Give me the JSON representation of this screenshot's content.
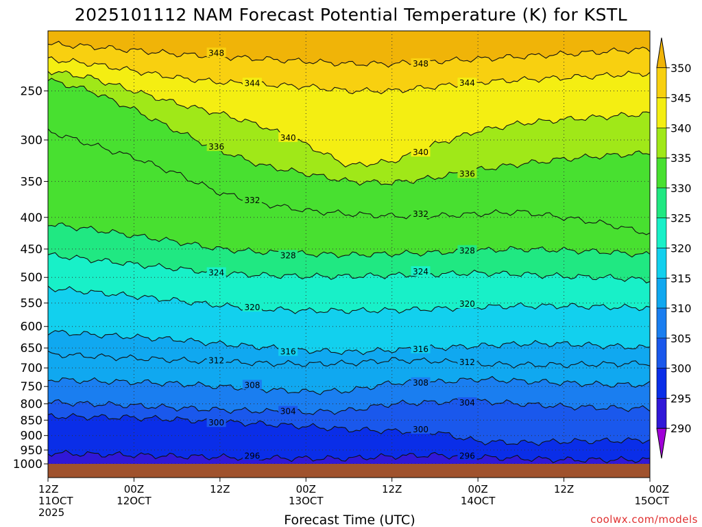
{
  "title": "2025101112 NAM Forecast Potential Temperature (K) for KSTL",
  "credit": "coolwx.com/models",
  "chart_data": {
    "type": "area",
    "title": "2025101112 NAM Forecast Potential Temperature (K) for KSTL",
    "xlabel": "Forecast Time (UTC)",
    "ylabel": "",
    "x_ticks": [
      {
        "hour": 0,
        "lines": [
          "12Z",
          "11OCT",
          "2025"
        ]
      },
      {
        "hour": 12,
        "lines": [
          "00Z",
          "12OCT"
        ]
      },
      {
        "hour": 24,
        "lines": [
          "12Z",
          ""
        ]
      },
      {
        "hour": 36,
        "lines": [
          "00Z",
          "13OCT"
        ]
      },
      {
        "hour": 48,
        "lines": [
          "12Z",
          ""
        ]
      },
      {
        "hour": 60,
        "lines": [
          "00Z",
          "14OCT"
        ]
      },
      {
        "hour": 72,
        "lines": [
          "12Z",
          ""
        ]
      },
      {
        "hour": 84,
        "lines": [
          "00Z",
          "15OCT"
        ]
      }
    ],
    "xlim": [
      0,
      84
    ],
    "y_ticks": [
      250,
      300,
      350,
      400,
      450,
      500,
      550,
      600,
      650,
      700,
      750,
      800,
      850,
      900,
      950,
      1000
    ],
    "ylim": [
      200,
      1000
    ],
    "y_scale": "log-pressure",
    "y_inverted": true,
    "grid": "dotted",
    "colorbar": {
      "levels": [
        290,
        295,
        300,
        305,
        310,
        315,
        320,
        325,
        330,
        335,
        340,
        345,
        350
      ],
      "colors": [
        "#a000d8",
        "#3018d8",
        "#0a2ee8",
        "#1a58ec",
        "#1a7ef0",
        "#10a8f0",
        "#12d0ee",
        "#18f0c8",
        "#20e882",
        "#48e030",
        "#a0e818",
        "#f4ee12",
        "#f8d010",
        "#f0b408"
      ]
    },
    "contour_labels": [
      "348",
      "344",
      "340",
      "336",
      "332",
      "328",
      "324",
      "320",
      "316",
      "312",
      "308",
      "304",
      "300",
      "296"
    ],
    "series": [
      {
        "name": "348",
        "x": [
          0,
          6,
          12,
          18,
          24,
          30,
          36,
          42,
          48,
          54,
          60,
          66,
          72,
          78,
          84
        ],
        "values": [
          210,
          212,
          215,
          218,
          220,
          222,
          224,
          226,
          226,
          224,
          222,
          220,
          218,
          216,
          214
        ]
      },
      {
        "name": "344",
        "x": [
          0,
          6,
          12,
          18,
          24,
          30,
          36,
          42,
          48,
          54,
          60,
          66,
          72,
          78,
          84
        ],
        "values": [
          222,
          226,
          232,
          238,
          242,
          244,
          246,
          250,
          250,
          246,
          242,
          240,
          238,
          236,
          234
        ]
      },
      {
        "name": "340",
        "x": [
          0,
          6,
          12,
          18,
          24,
          30,
          36,
          42,
          48,
          54,
          60,
          66,
          72,
          78,
          84
        ],
        "values": [
          232,
          238,
          250,
          262,
          272,
          285,
          305,
          330,
          325,
          305,
          290,
          282,
          278,
          275,
          272
        ]
      },
      {
        "name": "336",
        "x": [
          0,
          6,
          12,
          18,
          24,
          30,
          36,
          42,
          48,
          54,
          60,
          66,
          72,
          78,
          84
        ],
        "values": [
          240,
          250,
          268,
          290,
          312,
          330,
          340,
          350,
          352,
          345,
          335,
          328,
          322,
          318,
          315
        ]
      },
      {
        "name": "332",
        "x": [
          0,
          6,
          12,
          18,
          24,
          30,
          36,
          42,
          48,
          54,
          60,
          66,
          72,
          78,
          84
        ],
        "values": [
          290,
          305,
          320,
          340,
          365,
          380,
          390,
          395,
          398,
          398,
          395,
          392,
          400,
          410,
          425
        ]
      },
      {
        "name": "328",
        "x": [
          0,
          6,
          12,
          18,
          24,
          30,
          36,
          42,
          48,
          54,
          60,
          66,
          72,
          78,
          84
        ],
        "values": [
          410,
          418,
          428,
          438,
          450,
          455,
          458,
          460,
          458,
          456,
          452,
          450,
          452,
          455,
          460
        ]
      },
      {
        "name": "324",
        "x": [
          0,
          6,
          12,
          18,
          24,
          30,
          36,
          42,
          48,
          54,
          60,
          66,
          72,
          78,
          84
        ],
        "values": [
          460,
          468,
          476,
          484,
          492,
          496,
          498,
          498,
          496,
          494,
          492,
          494,
          498,
          500,
          505
        ]
      },
      {
        "name": "320",
        "x": [
          0,
          6,
          12,
          18,
          24,
          30,
          36,
          42,
          48,
          54,
          60,
          66,
          72,
          78,
          84
        ],
        "values": [
          520,
          528,
          536,
          545,
          555,
          562,
          566,
          566,
          565,
          562,
          558,
          556,
          556,
          558,
          560
        ]
      },
      {
        "name": "316",
        "x": [
          0,
          6,
          12,
          18,
          24,
          30,
          36,
          42,
          48,
          54,
          60,
          66,
          72,
          78,
          84
        ],
        "values": [
          612,
          618,
          624,
          630,
          640,
          648,
          656,
          660,
          655,
          650,
          645,
          640,
          640,
          645,
          650
        ]
      },
      {
        "name": "312",
        "x": [
          0,
          6,
          12,
          18,
          24,
          30,
          36,
          42,
          48,
          54,
          60,
          66,
          72,
          78,
          84
        ],
        "values": [
          665,
          670,
          675,
          680,
          684,
          688,
          690,
          688,
          680,
          682,
          690,
          692,
          692,
          690,
          688
        ]
      },
      {
        "name": "308",
        "x": [
          0,
          6,
          12,
          18,
          24,
          30,
          36,
          42,
          48,
          54,
          60,
          66,
          72,
          78,
          84
        ],
        "values": [
          730,
          735,
          738,
          742,
          750,
          758,
          765,
          762,
          740,
          738,
          730,
          735,
          740,
          745,
          745
        ]
      },
      {
        "name": "304",
        "x": [
          0,
          6,
          12,
          18,
          24,
          30,
          36,
          42,
          48,
          54,
          60,
          66,
          72,
          78,
          84
        ],
        "values": [
          795,
          800,
          805,
          812,
          818,
          822,
          826,
          820,
          800,
          795,
          792,
          800,
          808,
          812,
          815
        ]
      },
      {
        "name": "300",
        "x": [
          0,
          6,
          12,
          18,
          24,
          30,
          36,
          42,
          48,
          54,
          60,
          66,
          72,
          78,
          84
        ],
        "values": [
          838,
          840,
          842,
          848,
          855,
          862,
          870,
          880,
          885,
          888,
          920,
          925,
          920,
          918,
          915
        ]
      },
      {
        "name": "296",
        "x": [
          0,
          6,
          12,
          18,
          24,
          30,
          36,
          42,
          48,
          54,
          60,
          66,
          72,
          78,
          84
        ],
        "values": [
          960,
          965,
          968,
          972,
          975,
          978,
          980,
          980,
          972,
          968,
          975,
          980,
          985,
          985,
          985
        ]
      }
    ]
  }
}
